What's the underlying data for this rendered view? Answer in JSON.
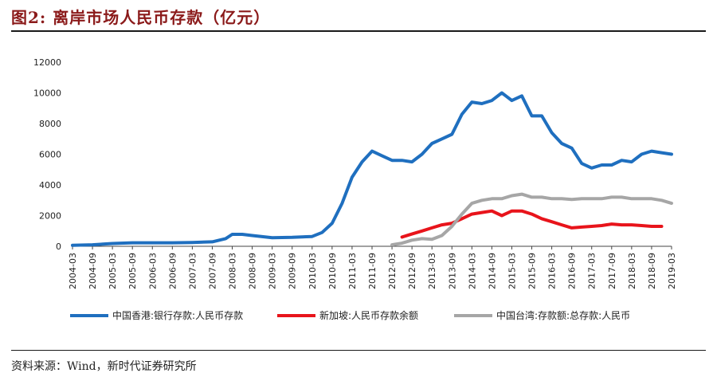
{
  "figure_title": "图2:   离岸市场人民币存款（亿元）",
  "source": "资料来源：Wind，新时代证券研究所",
  "chart_data": {
    "type": "line",
    "title": "离岸市场人民币存款（亿元）",
    "xlabel": "",
    "ylabel": "",
    "ylim": [
      0,
      12000
    ],
    "yticks": [
      0,
      2000,
      4000,
      6000,
      8000,
      10000,
      12000
    ],
    "xticks": [
      "2004-03",
      "2004-09",
      "2005-03",
      "2005-09",
      "2006-03",
      "2006-09",
      "2007-03",
      "2007-09",
      "2008-03",
      "2008-09",
      "2009-03",
      "2009-09",
      "2010-03",
      "2010-09",
      "2011-03",
      "2011-09",
      "2012-03",
      "2012-09",
      "2013-03",
      "2013-09",
      "2014-03",
      "2014-09",
      "2015-03",
      "2015-09",
      "2016-03",
      "2016-09",
      "2017-03",
      "2017-09",
      "2018-03",
      "2018-09",
      "2019-03"
    ],
    "grid": false,
    "legend_position": "bottom",
    "series": [
      {
        "name": "中国香港:银行存款:人民币存款",
        "color": "#1f6fbf",
        "points": [
          [
            "2004-03",
            60
          ],
          [
            "2004-09",
            100
          ],
          [
            "2005-03",
            180
          ],
          [
            "2005-09",
            230
          ],
          [
            "2006-03",
            230
          ],
          [
            "2006-09",
            230
          ],
          [
            "2007-03",
            250
          ],
          [
            "2007-09",
            290
          ],
          [
            "2008-01",
            500
          ],
          [
            "2008-03",
            780
          ],
          [
            "2008-06",
            780
          ],
          [
            "2008-09",
            700
          ],
          [
            "2009-03",
            560
          ],
          [
            "2009-09",
            580
          ],
          [
            "2010-03",
            640
          ],
          [
            "2010-06",
            900
          ],
          [
            "2010-09",
            1500
          ],
          [
            "2010-12",
            2800
          ],
          [
            "2011-03",
            4500
          ],
          [
            "2011-06",
            5500
          ],
          [
            "2011-09",
            6200
          ],
          [
            "2011-12",
            5900
          ],
          [
            "2012-03",
            5600
          ],
          [
            "2012-06",
            5600
          ],
          [
            "2012-09",
            5500
          ],
          [
            "2012-12",
            6000
          ],
          [
            "2013-03",
            6700
          ],
          [
            "2013-06",
            7000
          ],
          [
            "2013-09",
            7300
          ],
          [
            "2013-12",
            8600
          ],
          [
            "2014-03",
            9400
          ],
          [
            "2014-06",
            9300
          ],
          [
            "2014-09",
            9500
          ],
          [
            "2014-12",
            10000
          ],
          [
            "2015-03",
            9500
          ],
          [
            "2015-06",
            9800
          ],
          [
            "2015-09",
            8500
          ],
          [
            "2015-12",
            8500
          ],
          [
            "2016-03",
            7400
          ],
          [
            "2016-06",
            6700
          ],
          [
            "2016-09",
            6400
          ],
          [
            "2016-12",
            5400
          ],
          [
            "2017-03",
            5100
          ],
          [
            "2017-06",
            5300
          ],
          [
            "2017-09",
            5300
          ],
          [
            "2017-12",
            5600
          ],
          [
            "2018-03",
            5500
          ],
          [
            "2018-06",
            6000
          ],
          [
            "2018-09",
            6200
          ],
          [
            "2018-12",
            6100
          ],
          [
            "2019-03",
            6000
          ]
        ]
      },
      {
        "name": "新加坡:人民币存款余额",
        "color": "#e8141b",
        "points": [
          [
            "2012-06",
            600
          ],
          [
            "2012-09",
            800
          ],
          [
            "2012-12",
            1000
          ],
          [
            "2013-03",
            1200
          ],
          [
            "2013-06",
            1400
          ],
          [
            "2013-09",
            1500
          ],
          [
            "2013-12",
            1800
          ],
          [
            "2014-03",
            2100
          ],
          [
            "2014-06",
            2200
          ],
          [
            "2014-09",
            2300
          ],
          [
            "2014-12",
            2000
          ],
          [
            "2015-03",
            2300
          ],
          [
            "2015-06",
            2300
          ],
          [
            "2015-09",
            2100
          ],
          [
            "2015-12",
            1800
          ],
          [
            "2016-03",
            1600
          ],
          [
            "2016-06",
            1400
          ],
          [
            "2016-09",
            1200
          ],
          [
            "2016-12",
            1250
          ],
          [
            "2017-03",
            1300
          ],
          [
            "2017-06",
            1350
          ],
          [
            "2017-09",
            1450
          ],
          [
            "2017-12",
            1400
          ],
          [
            "2018-03",
            1400
          ],
          [
            "2018-06",
            1350
          ],
          [
            "2018-09",
            1300
          ],
          [
            "2018-12",
            1300
          ]
        ]
      },
      {
        "name": "中国台湾:存款额:总存款:人民币",
        "color": "#a6a6a6",
        "points": [
          [
            "2012-03",
            100
          ],
          [
            "2012-06",
            200
          ],
          [
            "2012-09",
            400
          ],
          [
            "2012-12",
            500
          ],
          [
            "2013-03",
            450
          ],
          [
            "2013-06",
            700
          ],
          [
            "2013-09",
            1300
          ],
          [
            "2013-12",
            2100
          ],
          [
            "2014-03",
            2800
          ],
          [
            "2014-06",
            3000
          ],
          [
            "2014-09",
            3100
          ],
          [
            "2014-12",
            3100
          ],
          [
            "2015-03",
            3300
          ],
          [
            "2015-06",
            3400
          ],
          [
            "2015-09",
            3200
          ],
          [
            "2015-12",
            3200
          ],
          [
            "2016-03",
            3100
          ],
          [
            "2016-06",
            3100
          ],
          [
            "2016-09",
            3050
          ],
          [
            "2016-12",
            3100
          ],
          [
            "2017-03",
            3100
          ],
          [
            "2017-06",
            3100
          ],
          [
            "2017-09",
            3200
          ],
          [
            "2017-12",
            3200
          ],
          [
            "2018-03",
            3100
          ],
          [
            "2018-06",
            3100
          ],
          [
            "2018-09",
            3100
          ],
          [
            "2018-12",
            3000
          ],
          [
            "2019-03",
            2800
          ]
        ]
      }
    ]
  }
}
